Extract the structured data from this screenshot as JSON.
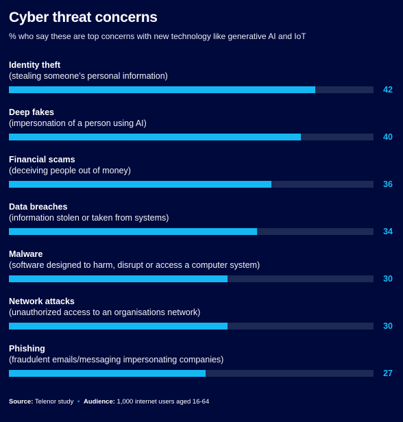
{
  "title": "Cyber threat concerns",
  "subtitle": "% who say these are top concerns with new technology like generative AI and IoT",
  "colors": {
    "background": "#00093c",
    "bar": "#16b8f3",
    "track": "#1c2a55",
    "value_text": "#16b8f3"
  },
  "chart_data": {
    "type": "bar",
    "orientation": "horizontal",
    "title": "Cyber threat concerns",
    "subtitle": "% who say these are top concerns with new technology like generative AI and IoT",
    "categories": [
      "Identity theft",
      "Deep fakes",
      "Financial scams",
      "Data breaches",
      "Malware",
      "Network attacks",
      "Phishing"
    ],
    "descriptions": [
      "(stealing someone’s personal information)",
      "(impersonation of a person using AI)",
      "(deceiving people out of money)",
      "(information stolen or taken from systems)",
      "(software designed to harm, disrupt or access a computer system)",
      "(unauthorized access to an organisations network)",
      "(fraudulent emails/messaging impersonating companies)"
    ],
    "values": [
      42,
      40,
      36,
      34,
      30,
      30,
      27
    ],
    "xlim": [
      0,
      50
    ],
    "grid": false,
    "legend": "none"
  },
  "footer": {
    "source_label": "Source:",
    "source_text": "Telenor study",
    "separator": "•",
    "audience_label": "Audience:",
    "audience_text": "1,000 internet users aged 16-64"
  }
}
